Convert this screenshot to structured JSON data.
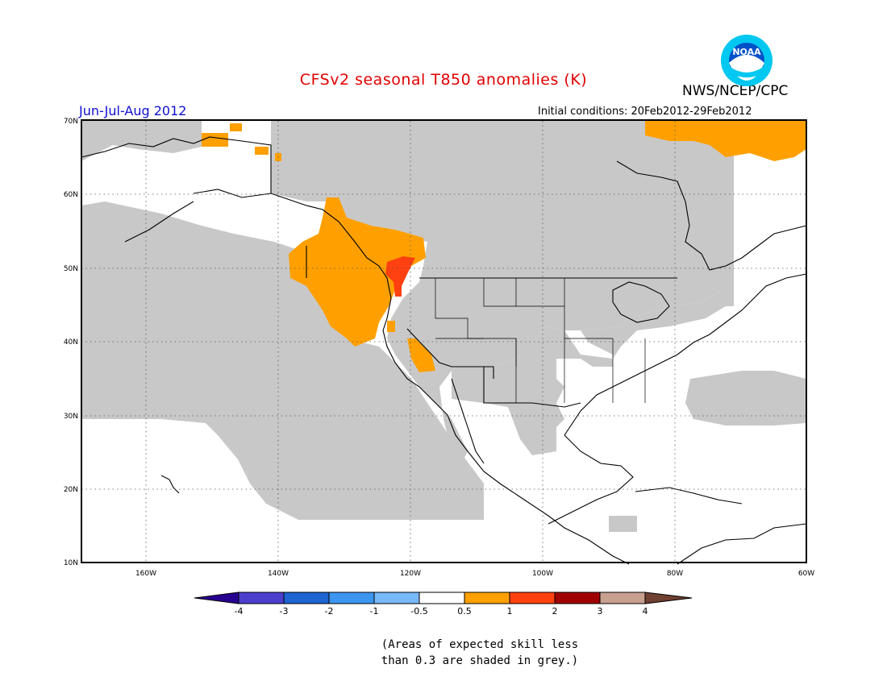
{
  "header": {
    "title": "CFSv2 seasonal T850 anomalies (K)",
    "period": "Jun-Jul-Aug 2012",
    "initial_conditions": "Initial conditions: 20Feb2012-29Feb2012",
    "organization": "NWS/NCEP/CPC",
    "logo_text": "NOAA"
  },
  "map": {
    "latitude_labels": [
      "70N",
      "60N",
      "50N",
      "40N",
      "30N",
      "20N",
      "10N"
    ],
    "longitude_labels": [
      "160W",
      "140W",
      "120W",
      "100W",
      "80W",
      "60W"
    ],
    "colors": {
      "skill_mask": "#c8c8c8",
      "anomaly_0_5_to_1": "#ffa000",
      "anomaly_1_to_2": "#ff4010",
      "coastline": "#000000"
    }
  },
  "colorbar": {
    "labels": [
      "-4",
      "-3",
      "-2",
      "-1",
      "-0.5",
      "0.5",
      "1",
      "2",
      "3",
      "4"
    ],
    "colors": [
      "#280090",
      "#4b3fce",
      "#1e64d2",
      "#3c96f0",
      "#78b9fa",
      "#ffffff",
      "#ffa000",
      "#ff4010",
      "#a00000",
      "#c8a090",
      "#704030"
    ]
  },
  "footnote": {
    "line1": "(Areas of expected skill less",
    "line2": "than 0.3 are shaded in grey.)"
  }
}
